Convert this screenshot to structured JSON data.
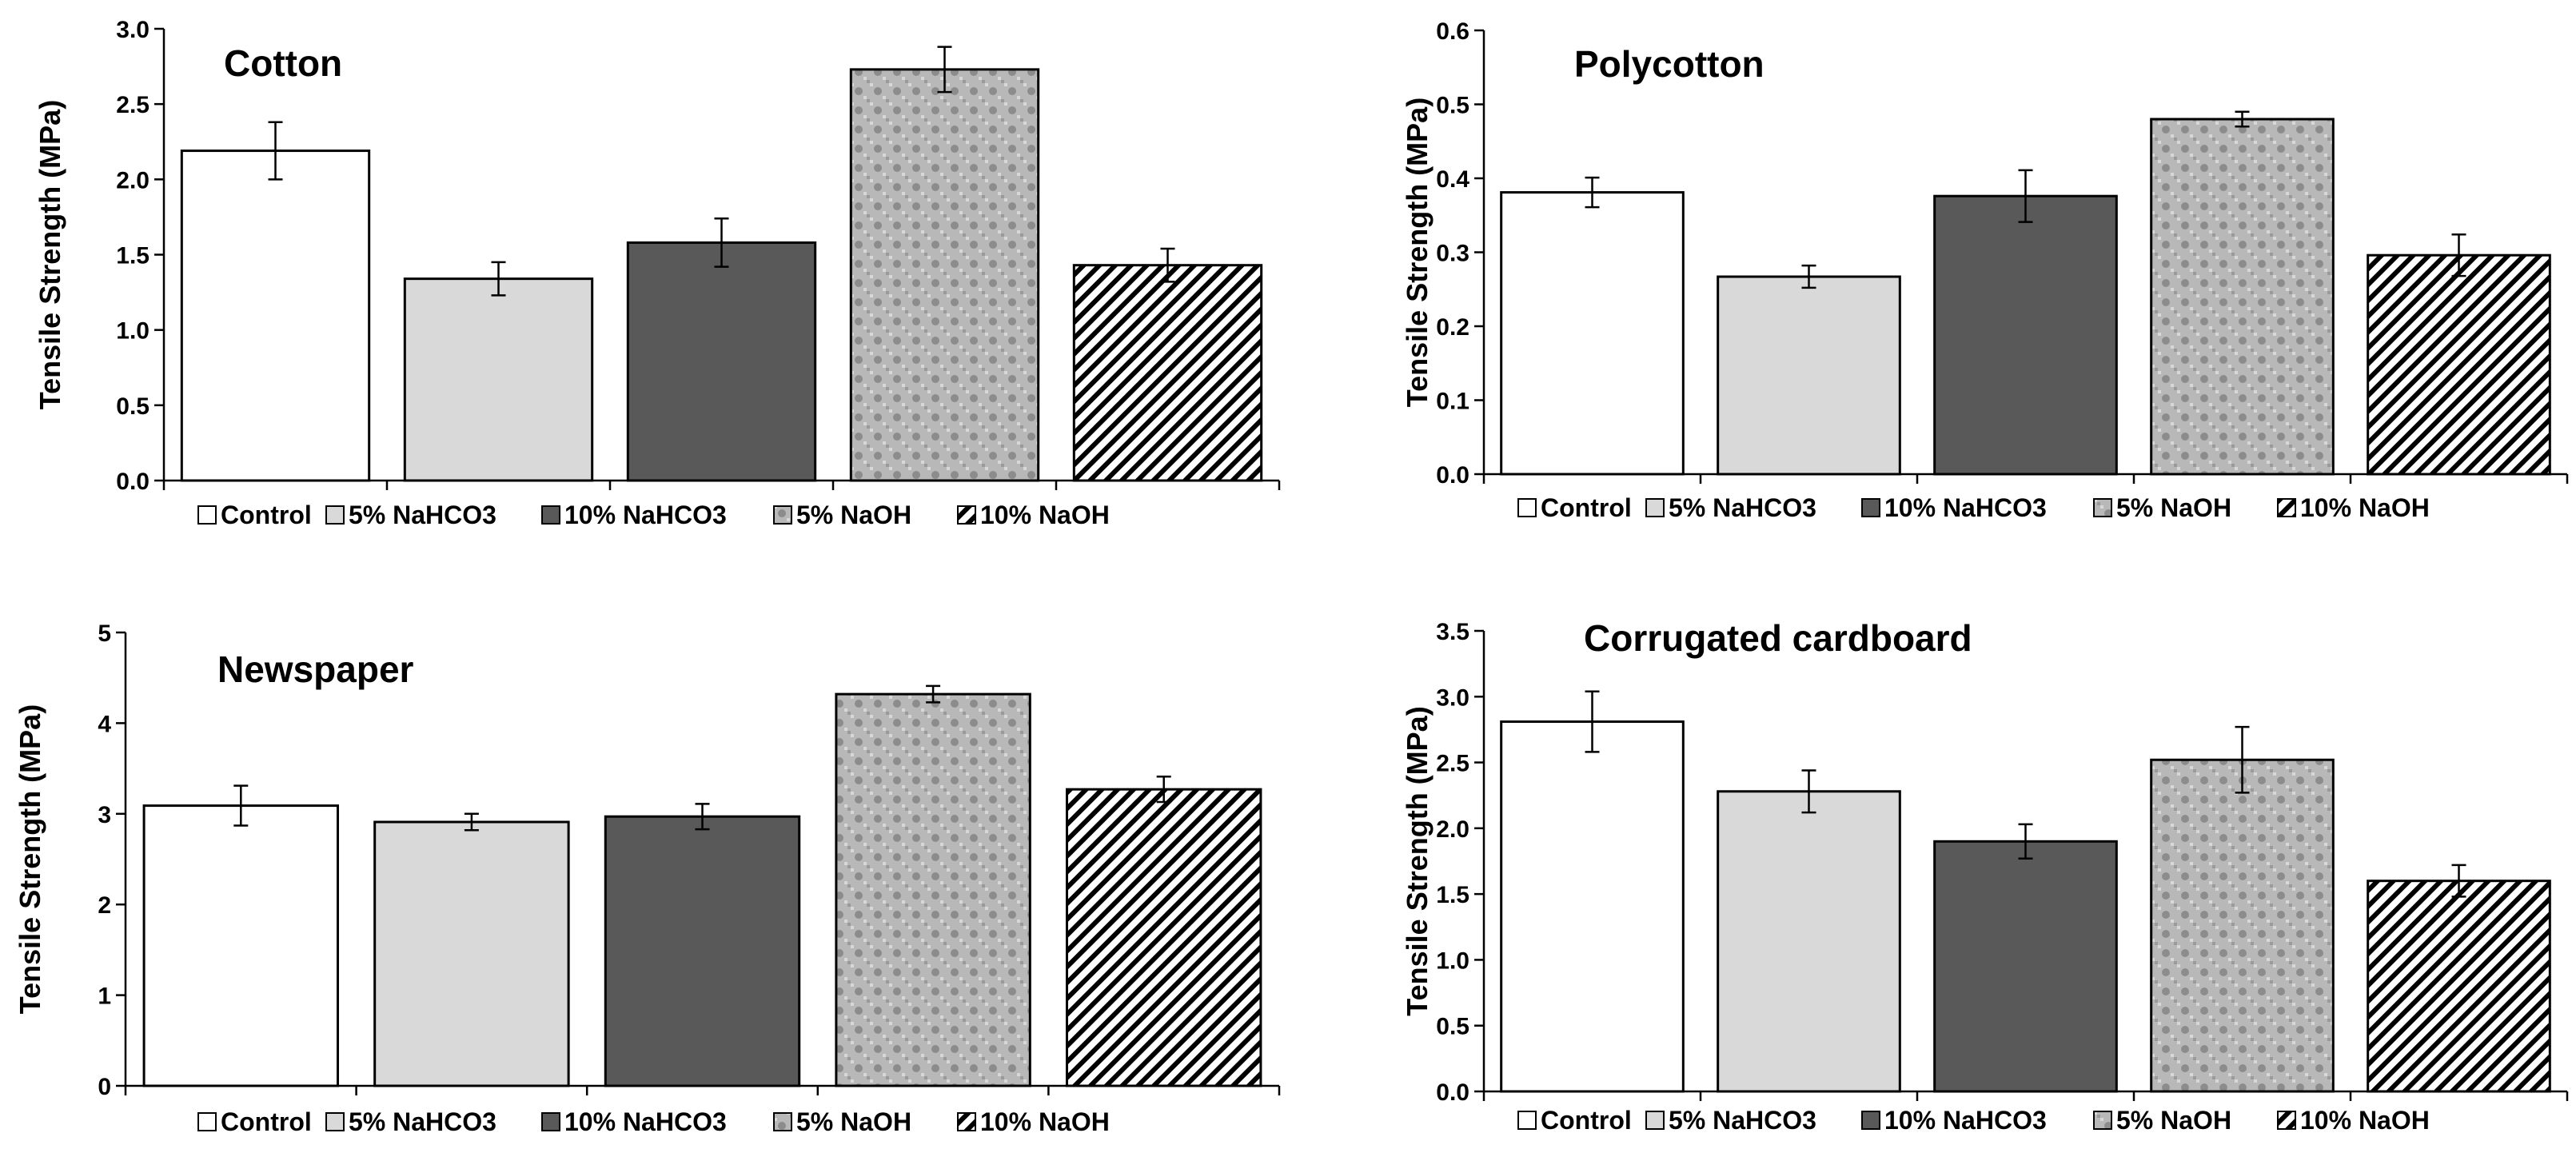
{
  "figure": {
    "background": "#ffffff"
  },
  "legend_entries": [
    {
      "label": "Control",
      "pattern": "none"
    },
    {
      "label": "5%  NaHCO3",
      "pattern": "light"
    },
    {
      "label": "10%  NaHCO3",
      "pattern": "dark"
    },
    {
      "label": "5%  NaOH",
      "pattern": "checker"
    },
    {
      "label": "10%  NaOH",
      "pattern": "hatch"
    }
  ],
  "colors": {
    "control": "#ffffff",
    "light": "#d9d9d9",
    "dark": "#595959",
    "checker_base": "#b8b8b8",
    "checker_dot": "#8c8c8c",
    "hatch_line": "#000000",
    "outline": "#000000"
  },
  "chart_data": [
    {
      "type": "bar",
      "title": "Cotton",
      "xlabel": "",
      "ylabel": "Tensile Strength (MPa)",
      "ylim": [
        0,
        3.0
      ],
      "yticks": [
        "0.0",
        "0.5",
        "1.0",
        "1.5",
        "2.0",
        "2.5",
        "3.0"
      ],
      "tick_values": [
        0,
        0.5,
        1.0,
        1.5,
        2.0,
        2.5,
        3.0
      ],
      "categories": [
        "Control",
        "5%  NaHCO3",
        "10%  NaHCO3",
        "5%  NaOH",
        "10%  NaOH"
      ],
      "values": [
        2.19,
        1.34,
        1.58,
        2.73,
        1.43
      ],
      "errors": [
        0.19,
        0.11,
        0.16,
        0.15,
        0.11
      ],
      "legend_position": "bottom"
    },
    {
      "type": "bar",
      "title": "Polycotton",
      "xlabel": "",
      "ylabel": "Tensile Strength (MPa)",
      "ylim": [
        0,
        0.6
      ],
      "yticks": [
        "0.0",
        "0.1",
        "0.2",
        "0.3",
        "0.4",
        "0.5",
        "0.6"
      ],
      "tick_values": [
        0,
        0.1,
        0.2,
        0.3,
        0.4,
        0.5,
        0.6
      ],
      "categories": [
        "Control",
        "5%  NaHCO3",
        "10%  NaHCO3",
        "5%  NaOH",
        "10%  NaOH"
      ],
      "values": [
        0.381,
        0.267,
        0.376,
        0.48,
        0.296
      ],
      "errors": [
        0.02,
        0.015,
        0.035,
        0.01,
        0.028
      ],
      "legend_position": "bottom"
    },
    {
      "type": "bar",
      "title": "Newspaper",
      "xlabel": "",
      "ylabel": "Tensile Strength (MPa)",
      "ylim": [
        0,
        5
      ],
      "yticks": [
        "0",
        "1",
        "2",
        "3",
        "4",
        "5"
      ],
      "tick_values": [
        0,
        1,
        2,
        3,
        4,
        5
      ],
      "categories": [
        "Control",
        "5%  NaHCO3",
        "10%  NaHCO3",
        "5%  NaOH",
        "10%  NaOH"
      ],
      "values": [
        3.09,
        2.91,
        2.97,
        4.32,
        3.27
      ],
      "errors": [
        0.22,
        0.09,
        0.14,
        0.09,
        0.14
      ],
      "legend_position": "bottom"
    },
    {
      "type": "bar",
      "title": "Corrugated cardboard",
      "xlabel": "",
      "ylabel": "Tensile Strength (MPa)",
      "ylim": [
        0,
        3.5
      ],
      "yticks": [
        "0.0",
        "0.5",
        "1.0",
        "1.5",
        "2.0",
        "2.5",
        "3.0",
        "3.5"
      ],
      "tick_values": [
        0,
        0.5,
        1.0,
        1.5,
        2.0,
        2.5,
        3.0,
        3.5
      ],
      "categories": [
        "Control",
        "5%  NaHCO3",
        "10%  NaHCO3",
        "5%  NaOH",
        "10%  NaOH"
      ],
      "values": [
        2.81,
        2.28,
        1.9,
        2.52,
        1.6
      ],
      "errors": [
        0.23,
        0.16,
        0.13,
        0.25,
        0.12
      ],
      "legend_position": "bottom"
    }
  ]
}
